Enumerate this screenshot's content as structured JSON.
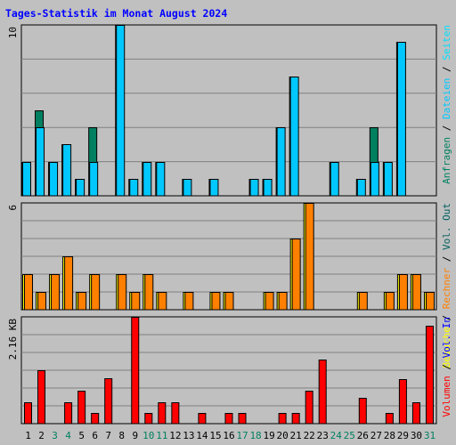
{
  "title": "Tages-Statistik im Monat August 2024",
  "colors": {
    "background": "#c0c0c0",
    "grid": "#808080",
    "anfragen": "#008060",
    "dateien": "#00c8ff",
    "seiten": "#00e0ff",
    "besuche": "#ffff00",
    "rechner": "#ff8000",
    "volumen": "#ff0000",
    "title": "#0000ff",
    "weekend_day": "#008060",
    "weekday": "#000000"
  },
  "chart_data": [
    {
      "type": "bar",
      "panel": "hits",
      "ymax_label": "10",
      "ylim": [
        0,
        10
      ],
      "categories": [
        "1",
        "2",
        "3",
        "4",
        "5",
        "6",
        "7",
        "8",
        "9",
        "10",
        "11",
        "12",
        "13",
        "14",
        "15",
        "16",
        "17",
        "18",
        "19",
        "20",
        "21",
        "22",
        "23",
        "24",
        "25",
        "26",
        "27",
        "28",
        "29",
        "30",
        "31"
      ],
      "series": [
        {
          "name": "Anfragen",
          "values": [
            2,
            5,
            2,
            3,
            1,
            4,
            0,
            10,
            1,
            2,
            2,
            0,
            1,
            0,
            1,
            0,
            0,
            1,
            1,
            4,
            7,
            0,
            0,
            2,
            0,
            1,
            4,
            2,
            9,
            0,
            0
          ]
        },
        {
          "name": "Dateien",
          "values": [
            2,
            4,
            2,
            3,
            1,
            2,
            0,
            10,
            1,
            2,
            2,
            0,
            1,
            0,
            1,
            0,
            0,
            1,
            1,
            4,
            7,
            0,
            0,
            2,
            0,
            1,
            2,
            2,
            9,
            0,
            0
          ]
        }
      ],
      "legend": [
        "Anfragen",
        "Dateien",
        "Seiten"
      ],
      "legend_colors": [
        "#008060",
        "#00c8ff",
        "#00e0ff"
      ]
    },
    {
      "type": "bar",
      "panel": "visits",
      "ymax_label": "6",
      "ylim": [
        0,
        6
      ],
      "categories": [
        "1",
        "2",
        "3",
        "4",
        "5",
        "6",
        "7",
        "8",
        "9",
        "10",
        "11",
        "12",
        "13",
        "14",
        "15",
        "16",
        "17",
        "18",
        "19",
        "20",
        "21",
        "22",
        "23",
        "24",
        "25",
        "26",
        "27",
        "28",
        "29",
        "30",
        "31"
      ],
      "series": [
        {
          "name": "Besuche",
          "values": [
            2,
            1,
            2,
            3,
            1,
            2,
            0,
            2,
            1,
            2,
            1,
            0,
            1,
            0,
            1,
            1,
            0,
            0,
            1,
            1,
            4,
            6,
            0,
            0,
            0,
            1,
            0,
            1,
            2,
            2,
            1
          ]
        },
        {
          "name": "Rechner",
          "values": [
            2,
            1,
            2,
            3,
            1,
            2,
            0,
            2,
            1,
            2,
            1,
            0,
            1,
            0,
            1,
            1,
            0,
            0,
            1,
            1,
            4,
            6,
            0,
            0,
            0,
            1,
            0,
            1,
            2,
            2,
            1
          ]
        }
      ],
      "legend": [
        "Besuche",
        "Rechner",
        "Vol. Out"
      ],
      "legend_colors": [
        "#ffff00",
        "#ff8000",
        "#006060"
      ]
    },
    {
      "type": "bar",
      "panel": "volume",
      "ymax_label": "2.16 KB",
      "ylim": [
        0,
        2.16
      ],
      "categories": [
        "1",
        "2",
        "3",
        "4",
        "5",
        "6",
        "7",
        "8",
        "9",
        "10",
        "11",
        "12",
        "13",
        "14",
        "15",
        "16",
        "17",
        "18",
        "19",
        "20",
        "21",
        "22",
        "23",
        "24",
        "25",
        "26",
        "27",
        "28",
        "29",
        "30",
        "31"
      ],
      "series": [
        {
          "name": "Volumen",
          "values": [
            0.44,
            1.08,
            0,
            0.44,
            0.66,
            0.22,
            0.92,
            0,
            2.16,
            0.22,
            0.44,
            0.44,
            0,
            0.22,
            0,
            0.22,
            0.22,
            0,
            0,
            0.22,
            0.22,
            0.66,
            1.3,
            0,
            0,
            0.52,
            0,
            0.22,
            0.9,
            0.44,
            1.98
          ]
        }
      ],
      "legend": [
        "Volumen",
        "Vol. In"
      ],
      "legend_colors": [
        "#ff0000",
        "#0000ff"
      ]
    }
  ],
  "days": [
    {
      "label": "1",
      "weekend": false
    },
    {
      "label": "2",
      "weekend": false
    },
    {
      "label": "3",
      "weekend": true
    },
    {
      "label": "4",
      "weekend": true
    },
    {
      "label": "5",
      "weekend": false
    },
    {
      "label": "6",
      "weekend": false
    },
    {
      "label": "7",
      "weekend": false
    },
    {
      "label": "8",
      "weekend": false
    },
    {
      "label": "9",
      "weekend": false
    },
    {
      "label": "10",
      "weekend": true
    },
    {
      "label": "11",
      "weekend": true
    },
    {
      "label": "12",
      "weekend": false
    },
    {
      "label": "13",
      "weekend": false
    },
    {
      "label": "14",
      "weekend": false
    },
    {
      "label": "15",
      "weekend": false
    },
    {
      "label": "16",
      "weekend": false
    },
    {
      "label": "17",
      "weekend": true
    },
    {
      "label": "18",
      "weekend": true
    },
    {
      "label": "19",
      "weekend": false
    },
    {
      "label": "20",
      "weekend": false
    },
    {
      "label": "21",
      "weekend": false
    },
    {
      "label": "22",
      "weekend": false
    },
    {
      "label": "23",
      "weekend": false
    },
    {
      "label": "24",
      "weekend": true
    },
    {
      "label": "25",
      "weekend": true
    },
    {
      "label": "26",
      "weekend": false
    },
    {
      "label": "27",
      "weekend": false
    },
    {
      "label": "28",
      "weekend": false
    },
    {
      "label": "29",
      "weekend": false
    },
    {
      "label": "30",
      "weekend": false
    },
    {
      "label": "31",
      "weekend": true
    }
  ]
}
